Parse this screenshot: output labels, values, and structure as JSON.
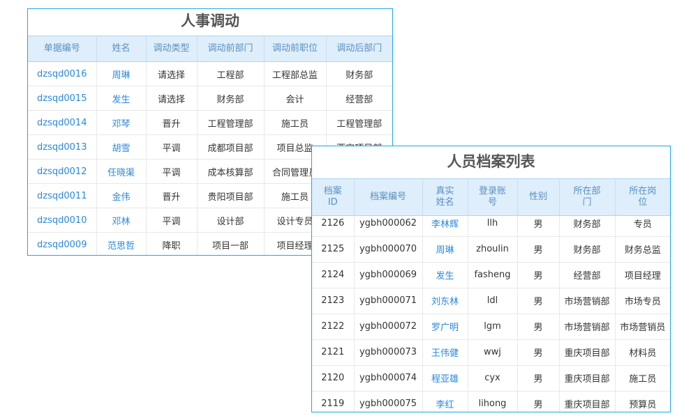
{
  "transfer": {
    "title": "人事调动",
    "columns": [
      "单据编号",
      "姓名",
      "调动类型",
      "调动前部门",
      "调动前职位",
      "调动后部门"
    ],
    "rows": [
      [
        "dzsqd0016",
        "周琳",
        "请选择",
        "工程部",
        "工程部总监",
        "财务部"
      ],
      [
        "dzsqd0015",
        "发生",
        "请选择",
        "财务部",
        "会计",
        "经营部"
      ],
      [
        "dzsqd0014",
        "邓琴",
        "晋升",
        "工程管理部",
        "施工员",
        "工程管理部"
      ],
      [
        "dzsqd0013",
        "胡雪",
        "平调",
        "成都项目部",
        "项目总监",
        "西安项目部"
      ],
      [
        "dzsqd0012",
        "任晓渠",
        "平调",
        "成本核算部",
        "合同管理员",
        ""
      ],
      [
        "dzsqd0011",
        "金伟",
        "晋升",
        "贵阳项目部",
        "施工员",
        ""
      ],
      [
        "dzsqd0010",
        "邓林",
        "平调",
        "设计部",
        "设计专员",
        ""
      ],
      [
        "dzsqd0009",
        "范思哲",
        "降职",
        "项目一部",
        "项目经理",
        ""
      ]
    ]
  },
  "archive": {
    "title": "人员档案列表",
    "columns": [
      "档案ID",
      "档案编号",
      "真实姓名",
      "登录账号",
      "性别",
      "所在部门",
      "所在岗位"
    ],
    "rows": [
      [
        "2126",
        "ygbh000062",
        "李林辉",
        "llh",
        "男",
        "财务部",
        "专员"
      ],
      [
        "2125",
        "ygbh000070",
        "周琳",
        "zhoulin",
        "男",
        "财务部",
        "财务总监"
      ],
      [
        "2124",
        "ygbh000069",
        "发生",
        "fasheng",
        "男",
        "经营部",
        "项目经理"
      ],
      [
        "2123",
        "ygbh000071",
        "刘东林",
        "ldl",
        "男",
        "市场营销部",
        "市场专员"
      ],
      [
        "2122",
        "ygbh000072",
        "罗广明",
        "lgm",
        "男",
        "市场营销部",
        "市场营销员"
      ],
      [
        "2121",
        "ygbh000073",
        "王伟健",
        "wwj",
        "男",
        "重庆项目部",
        "材料员"
      ],
      [
        "2120",
        "ygbh000074",
        "程亚雄",
        "cyx",
        "男",
        "重庆项目部",
        "施工员"
      ],
      [
        "2119",
        "ygbh000075",
        "李红",
        "lihong",
        "男",
        "重庆项目部",
        "预算员"
      ]
    ]
  },
  "colors": {
    "border": "#1ea7e4",
    "header_bg": "#deeefb",
    "link": "#2a88de"
  }
}
